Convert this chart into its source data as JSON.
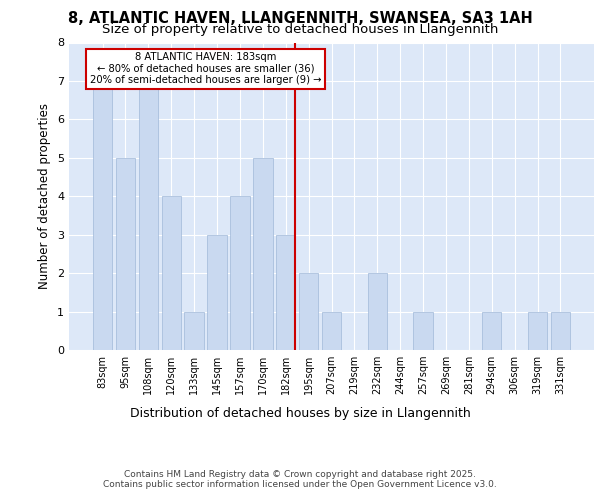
{
  "title1": "8, ATLANTIC HAVEN, LLANGENNITH, SWANSEA, SA3 1AH",
  "title2": "Size of property relative to detached houses in Llangennith",
  "xlabel": "Distribution of detached houses by size in Llangennith",
  "ylabel": "Number of detached properties",
  "categories": [
    "83sqm",
    "95sqm",
    "108sqm",
    "120sqm",
    "133sqm",
    "145sqm",
    "157sqm",
    "170sqm",
    "182sqm",
    "195sqm",
    "207sqm",
    "219sqm",
    "232sqm",
    "244sqm",
    "257sqm",
    "269sqm",
    "281sqm",
    "294sqm",
    "306sqm",
    "319sqm",
    "331sqm"
  ],
  "values": [
    7,
    5,
    7,
    4,
    1,
    3,
    4,
    5,
    3,
    2,
    1,
    0,
    2,
    0,
    1,
    0,
    0,
    1,
    0,
    1,
    1
  ],
  "bar_color": "#c9d9f0",
  "bar_edgecolor": "#a0b8d8",
  "vline_index": 8,
  "vline_color": "#cc0000",
  "annotation_text": "8 ATLANTIC HAVEN: 183sqm\n← 80% of detached houses are smaller (36)\n20% of semi-detached houses are larger (9) →",
  "annotation_box_color": "#cc0000",
  "ylim": [
    0,
    8
  ],
  "yticks": [
    0,
    1,
    2,
    3,
    4,
    5,
    6,
    7,
    8
  ],
  "background_color": "#dde8f8",
  "footer": "Contains HM Land Registry data © Crown copyright and database right 2025.\nContains public sector information licensed under the Open Government Licence v3.0.",
  "title_fontsize": 10.5,
  "subtitle_fontsize": 9.5,
  "title_fontweight": "bold"
}
